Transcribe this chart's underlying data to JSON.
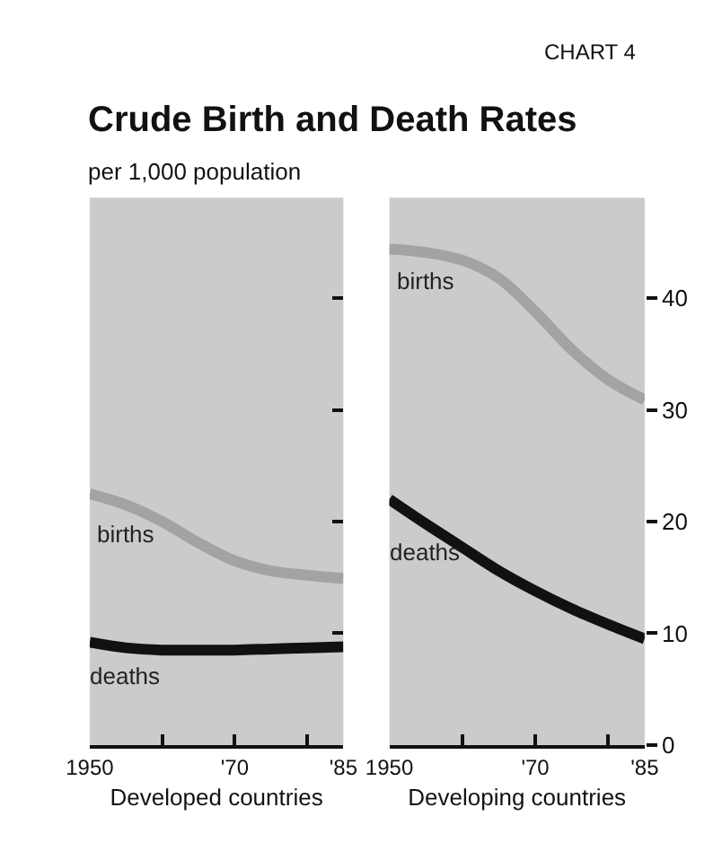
{
  "chart_data": [
    {
      "type": "line",
      "title": "Crude Birth and Death Rates",
      "subtitle": "per 1,000 population",
      "annotations": [
        "CHART 4"
      ],
      "xlabel": "Developed countries",
      "x": [
        1950,
        1955,
        1960,
        1965,
        1970,
        1975,
        1980,
        1985
      ],
      "xlim": [
        1950,
        1985
      ],
      "xticks": [
        1950,
        {
          "value": 1960,
          "label": null
        },
        {
          "value": 1970,
          "label": "'70"
        },
        {
          "value": 1980,
          "label": null
        },
        {
          "value": 1985,
          "label": "'85"
        }
      ],
      "ylim": [
        0,
        49
      ],
      "yticks": [
        {
          "value": 10,
          "label": null
        },
        {
          "value": 20,
          "label": null
        },
        {
          "value": 30,
          "label": null
        },
        {
          "value": 40,
          "label": null
        }
      ],
      "tick_labels": "x",
      "grid": false,
      "series": [
        {
          "name": "births",
          "color": "#a3a3a3",
          "values": [
            22.5,
            21.5,
            20.0,
            18.1,
            16.5,
            15.6,
            15.2,
            14.9
          ]
        },
        {
          "name": "deaths",
          "color": "#111111",
          "values": [
            9.2,
            8.7,
            8.5,
            8.5,
            8.5,
            8.6,
            8.7,
            8.8
          ]
        }
      ]
    },
    {
      "type": "line",
      "xlabel": "Developing countries",
      "x": [
        1950,
        1955,
        1960,
        1965,
        1970,
        1975,
        1980,
        1985
      ],
      "xlim": [
        1950,
        1985
      ],
      "xticks": [
        1950,
        {
          "value": 1960,
          "label": null
        },
        {
          "value": 1970,
          "label": "'70"
        },
        {
          "value": 1980,
          "label": null
        },
        {
          "value": 1985,
          "label": "'85"
        }
      ],
      "ylim": [
        0,
        49
      ],
      "yticks": [
        0,
        10,
        20,
        30,
        40
      ],
      "grid": false,
      "series": [
        {
          "name": "births",
          "color": "#a3a3a3",
          "values": [
            44.4,
            44.1,
            43.4,
            41.8,
            38.8,
            35.4,
            32.7,
            30.9
          ]
        },
        {
          "name": "deaths",
          "color": "#111111",
          "values": [
            22.0,
            19.8,
            17.7,
            15.6,
            13.8,
            12.2,
            10.8,
            9.5
          ]
        }
      ]
    }
  ]
}
